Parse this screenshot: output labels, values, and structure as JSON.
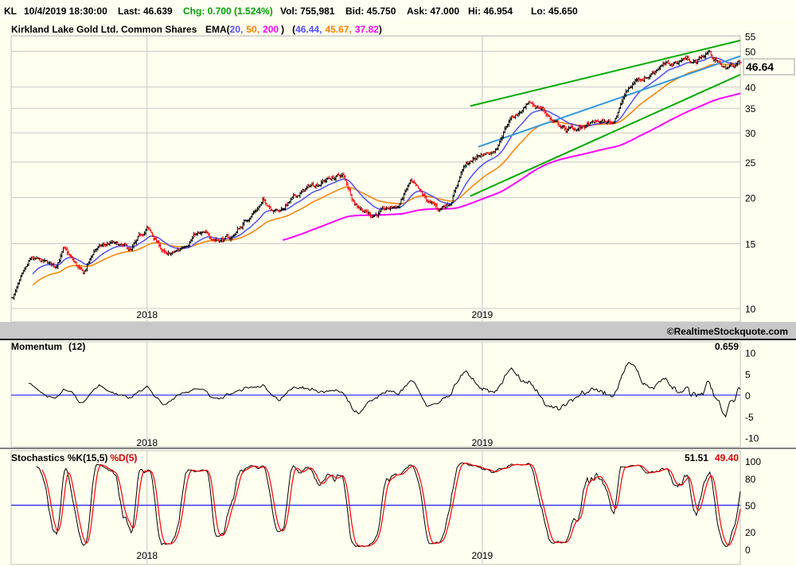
{
  "header": {
    "symbol": "KL",
    "datetime": "10/4/2019 18:30:00",
    "last": "Last: 46.639",
    "chg": "Chg: 0.700 (1.524%)",
    "vol": "Vol: 755,981",
    "bid": "Bid: 45.750",
    "ask": "Ask: 47.000",
    "hi": "Hi: 46.954",
    "lo": "Lo: 45.650"
  },
  "colors": {
    "up": "#000000",
    "down": "#ff0000",
    "ema20": "#5050ff",
    "ema50": "#ff8000",
    "ema200": "#ff00ff",
    "channel": "#00aa00",
    "trend": "#3399dd",
    "zero": "#0000ff",
    "chg": "#00a000"
  },
  "copyright": "©RealtimeStockquote.com",
  "chart_data": [
    {
      "type": "ohlc",
      "title": "Kirkland Lake Gold Ltd. Common Shares",
      "ema_label": "EMA(",
      "ema_periods": [
        "20,",
        "50,",
        "200"
      ],
      "ema_close": ")",
      "ema_values": [
        "46.44,",
        "45.67,",
        "37.82"
      ],
      "ema_open": "(",
      "ema_end": ")",
      "last_price_label": "46.64",
      "y_scale": "log",
      "ylim": [
        9.7,
        57
      ],
      "yticks": [
        "55",
        "50",
        "40",
        "35",
        "30",
        "25",
        "20",
        "15",
        "10"
      ],
      "ytick_values": [
        55,
        50,
        40,
        35,
        30,
        25,
        20,
        15,
        10
      ],
      "xticks": [
        {
          "label": "2018",
          "day": 101
        },
        {
          "label": "2019",
          "day": 353
        }
      ],
      "trading_days": 548,
      "close_keypoints": [
        [
          0,
          10.8
        ],
        [
          14,
          13.5
        ],
        [
          32,
          13
        ],
        [
          38,
          14.5
        ],
        [
          53,
          12.3
        ],
        [
          62,
          14.5
        ],
        [
          74,
          15
        ],
        [
          89,
          14.3
        ],
        [
          101,
          16.5
        ],
        [
          116,
          13.8
        ],
        [
          125,
          14.3
        ],
        [
          137,
          16
        ],
        [
          152,
          15.5
        ],
        [
          164,
          15.5
        ],
        [
          176,
          17.5
        ],
        [
          188,
          19.5
        ],
        [
          200,
          18.5
        ],
        [
          212,
          20
        ],
        [
          224,
          21.5
        ],
        [
          236,
          22.5
        ],
        [
          248,
          23
        ],
        [
          257,
          19.5
        ],
        [
          269,
          18
        ],
        [
          281,
          18.5
        ],
        [
          290,
          19
        ],
        [
          299,
          22
        ],
        [
          308,
          20
        ],
        [
          320,
          18.5
        ],
        [
          329,
          19.5
        ],
        [
          338,
          24
        ],
        [
          350,
          26
        ],
        [
          362,
          27
        ],
        [
          374,
          33
        ],
        [
          389,
          35.5
        ],
        [
          398,
          35
        ],
        [
          407,
          32
        ],
        [
          416,
          30.5
        ],
        [
          428,
          31
        ],
        [
          440,
          32
        ],
        [
          451,
          32
        ],
        [
          460,
          38
        ],
        [
          469,
          42
        ],
        [
          478,
          43
        ],
        [
          487,
          46
        ],
        [
          496,
          46
        ],
        [
          505,
          48
        ],
        [
          514,
          47
        ],
        [
          523,
          50
        ],
        [
          529,
          47
        ],
        [
          535,
          45
        ],
        [
          547,
          46.64
        ]
      ],
      "trendlines": [
        {
          "name": "upper-channel",
          "from": [
            344,
            35.5
          ],
          "to": [
            547,
            53.5
          ]
        },
        {
          "name": "lower-channel",
          "from": [
            344,
            20.2
          ],
          "to": [
            547,
            43.2
          ]
        },
        {
          "name": "mid-trend",
          "from": [
            350,
            27.5
          ],
          "to": [
            547,
            48.5
          ]
        }
      ]
    },
    {
      "type": "line",
      "title": "Momentum",
      "period": "(12)",
      "value_label": "0.659",
      "ylim": [
        -12,
        12
      ],
      "yticks": [
        "10",
        "5",
        "0",
        "-5",
        "-10"
      ],
      "ytick_values": [
        10,
        5,
        0,
        -5,
        -10
      ],
      "xticks": [
        "2018",
        "2019"
      ]
    },
    {
      "type": "line",
      "title": "Stochastics %K(15,5)",
      "d_label": "%D(5)",
      "k_value": "51.51",
      "d_value": "49.40",
      "ylim": [
        0,
        100
      ],
      "yticks": [
        "100",
        "80",
        "50",
        "20",
        "0"
      ],
      "ytick_values": [
        100,
        80,
        50,
        20,
        0
      ],
      "xticks": [
        "2018",
        "2019"
      ]
    }
  ]
}
